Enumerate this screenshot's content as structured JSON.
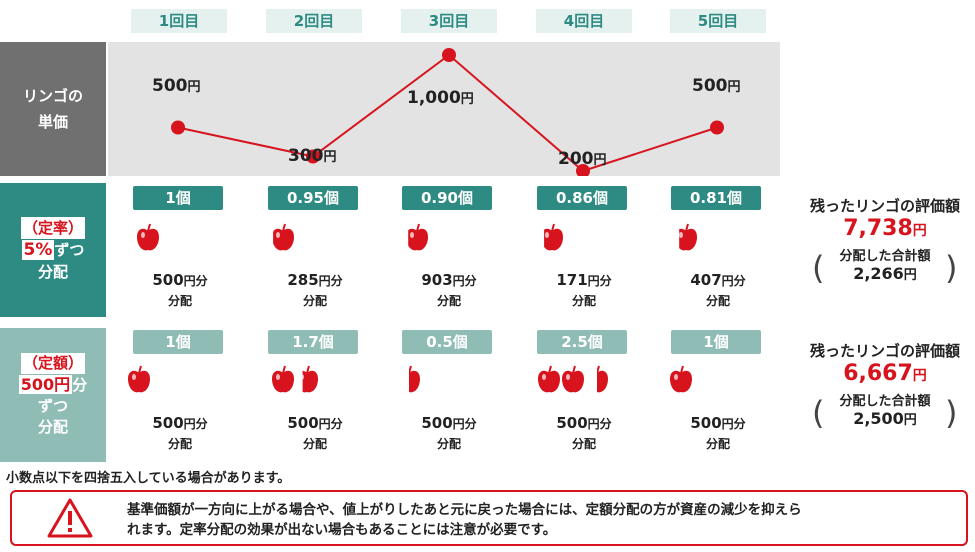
{
  "columns": [
    "1回目",
    "2回目",
    "3回目",
    "4回目",
    "5回目"
  ],
  "price_row": {
    "label_line1": "リンゴの",
    "label_line2": "単価",
    "points": [
      {
        "value": "500",
        "unit": "円",
        "price": 500
      },
      {
        "value": "300",
        "unit": "円",
        "price": 300
      },
      {
        "value": "1,000",
        "unit": "円",
        "price": 1000
      },
      {
        "value": "200",
        "unit": "円",
        "price": 200
      },
      {
        "value": "500",
        "unit": "円",
        "price": 500
      }
    ]
  },
  "fixed_rate": {
    "label_paren": "（定率）",
    "label_highlight": "5%",
    "label_rest": "ずつ",
    "label_line3": "分配",
    "badges": [
      "1個",
      "0.95個",
      "0.90個",
      "0.86個",
      "0.81個"
    ],
    "apple_quantity": [
      1,
      0.95,
      0.9,
      0.86,
      0.81
    ],
    "amounts": [
      {
        "value": "500",
        "unit": "円分",
        "line2": "分配"
      },
      {
        "value": "285",
        "unit": "円分",
        "line2": "分配"
      },
      {
        "value": "903",
        "unit": "円分",
        "line2": "分配"
      },
      {
        "value": "171",
        "unit": "円分",
        "line2": "分配"
      },
      {
        "value": "407",
        "unit": "円分",
        "line2": "分配"
      }
    ],
    "summary": {
      "title": "残ったリンゴの評価額",
      "value": "7,738",
      "unit": "円",
      "sub_label": "分配した合計額",
      "sub_value": "2,266",
      "sub_unit": "円"
    }
  },
  "fixed_amount": {
    "label_paren": "（定額）",
    "label_highlight": "500円",
    "label_rest": "分",
    "label_line3": "ずつ",
    "label_line4": "分配",
    "badges": [
      "1個",
      "1.7個",
      "0.5個",
      "2.5個",
      "1個"
    ],
    "apple_quantity": [
      1,
      1.7,
      0.5,
      2.5,
      1
    ],
    "amounts": [
      {
        "value": "500",
        "unit": "円分",
        "line2": "分配"
      },
      {
        "value": "500",
        "unit": "円分",
        "line2": "分配"
      },
      {
        "value": "500",
        "unit": "円分",
        "line2": "分配"
      },
      {
        "value": "500",
        "unit": "円分",
        "line2": "分配"
      },
      {
        "value": "500",
        "unit": "円分",
        "line2": "分配"
      }
    ],
    "summary": {
      "title": "残ったリンゴの評価額",
      "value": "6,667",
      "unit": "円",
      "sub_label": "分配した合計額",
      "sub_value": "2,500",
      "sub_unit": "円"
    }
  },
  "note": "小数点以下を四捨五入している場合があります。",
  "warning": {
    "icon": "warning-triangle-icon",
    "line1": "基準価額が一方向に上がる場合や、値上がりしたあと元に戻った場合には、定額分配の方が資産の減少を抑えら",
    "line2": "れます。定率分配の効果が出ない場合もあることには注意が必要です。"
  },
  "colors": {
    "accent_red": "#d7141e",
    "teal_dark": "#2e8b83",
    "teal_light": "#8fbdb6",
    "header_grey": "#707070",
    "chart_bg": "#e3e3e3"
  }
}
